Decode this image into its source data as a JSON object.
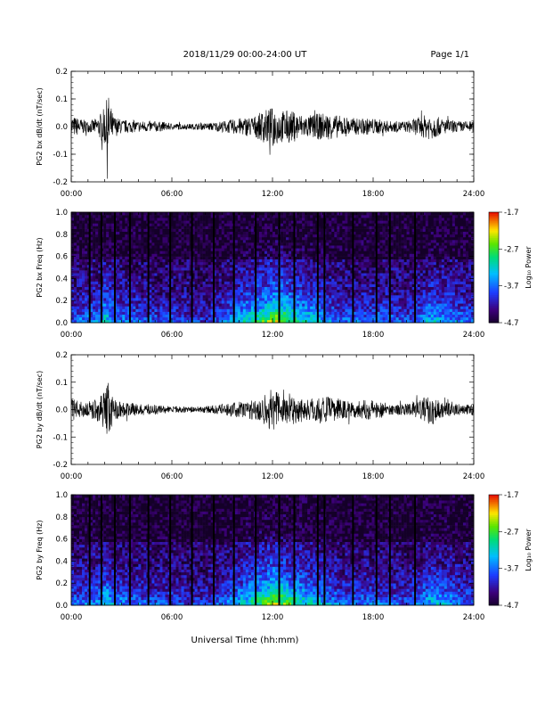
{
  "header": {
    "title": "2018/11/29  00:00-24:00 UT",
    "page": "Page 1/1"
  },
  "xaxis": {
    "label": "Universal Time (hh:mm)",
    "ticks": [
      "00:00",
      "06:00",
      "12:00",
      "18:00",
      "24:00"
    ],
    "range_hours": [
      0,
      24
    ]
  },
  "colorbar": {
    "label": "Log₁₀ Power",
    "ticks": [
      "-1.7",
      "-2.7",
      "-3.7",
      "-4.7"
    ],
    "range": [
      -4.7,
      -1.7
    ]
  },
  "chart_data": [
    {
      "type": "line",
      "ylabel": "PG2 bx dB/dt (nT/sec)",
      "ylim": [
        -0.2,
        0.2
      ],
      "yticks": [
        "0.2",
        "0.1",
        "0.0",
        "-0.1",
        "-0.2"
      ],
      "series": [
        {
          "x_hours": [
            0,
            0.5,
            1,
            1.5,
            2,
            2.2,
            2.5,
            3,
            4,
            5,
            6,
            7,
            8,
            9,
            10,
            11,
            11.5,
            12,
            12.5,
            13,
            14,
            15,
            16,
            17,
            18,
            19,
            20,
            21,
            21.5,
            22,
            23,
            24
          ],
          "envelope": [
            0.04,
            0.03,
            0.02,
            0.03,
            0.07,
            0.12,
            0.04,
            0.025,
            0.02,
            0.02,
            0.012,
            0.01,
            0.012,
            0.02,
            0.03,
            0.04,
            0.06,
            0.07,
            0.06,
            0.06,
            0.04,
            0.05,
            0.04,
            0.03,
            0.03,
            0.02,
            0.02,
            0.04,
            0.05,
            0.03,
            0.02,
            0.02
          ]
        }
      ]
    },
    {
      "type": "heatmap",
      "ylabel": "PG2 bx Freq (Hz)",
      "ylim": [
        0.0,
        1.0
      ],
      "yticks": [
        "1.0",
        "0.8",
        "0.6",
        "0.4",
        "0.2",
        "0.0"
      ],
      "gap_hours": [
        1.1,
        1.8,
        2.6,
        3.5,
        4.6,
        5.9,
        7.2,
        8.5,
        9.7,
        11.0,
        12.4,
        13.3,
        14.7,
        15.1,
        16.8,
        18.2,
        19.0,
        20.5
      ]
    },
    {
      "type": "line",
      "ylabel": "PG2 by dB/dt (nT/sec)",
      "ylim": [
        -0.2,
        0.2
      ],
      "yticks": [
        "0.2",
        "0.1",
        "0.0",
        "-0.1",
        "-0.2"
      ],
      "series": [
        {
          "x_hours": [
            0,
            0.5,
            1,
            1.5,
            2,
            2.2,
            2.5,
            3,
            4,
            5,
            6,
            7,
            8,
            9,
            10,
            11,
            11.5,
            12,
            12.5,
            13,
            14,
            15,
            16,
            17,
            18,
            19,
            20,
            21,
            21.5,
            22,
            23,
            24
          ],
          "envelope": [
            0.04,
            0.03,
            0.03,
            0.04,
            0.07,
            0.11,
            0.04,
            0.03,
            0.02,
            0.02,
            0.012,
            0.01,
            0.012,
            0.02,
            0.03,
            0.04,
            0.06,
            0.08,
            0.06,
            0.06,
            0.04,
            0.05,
            0.04,
            0.03,
            0.04,
            0.02,
            0.02,
            0.04,
            0.06,
            0.03,
            0.02,
            0.02
          ]
        }
      ]
    },
    {
      "type": "heatmap",
      "ylabel": "PG2 by Freq (Hz)",
      "ylim": [
        0.0,
        1.0
      ],
      "yticks": [
        "1.0",
        "0.8",
        "0.6",
        "0.4",
        "0.2",
        "0.0"
      ],
      "gap_hours": [
        1.1,
        1.8,
        2.6,
        3.5,
        4.6,
        5.9,
        7.2,
        8.5,
        9.7,
        11.0,
        12.4,
        13.3,
        14.7,
        15.1,
        16.8,
        18.2,
        19.0,
        20.5
      ]
    }
  ]
}
